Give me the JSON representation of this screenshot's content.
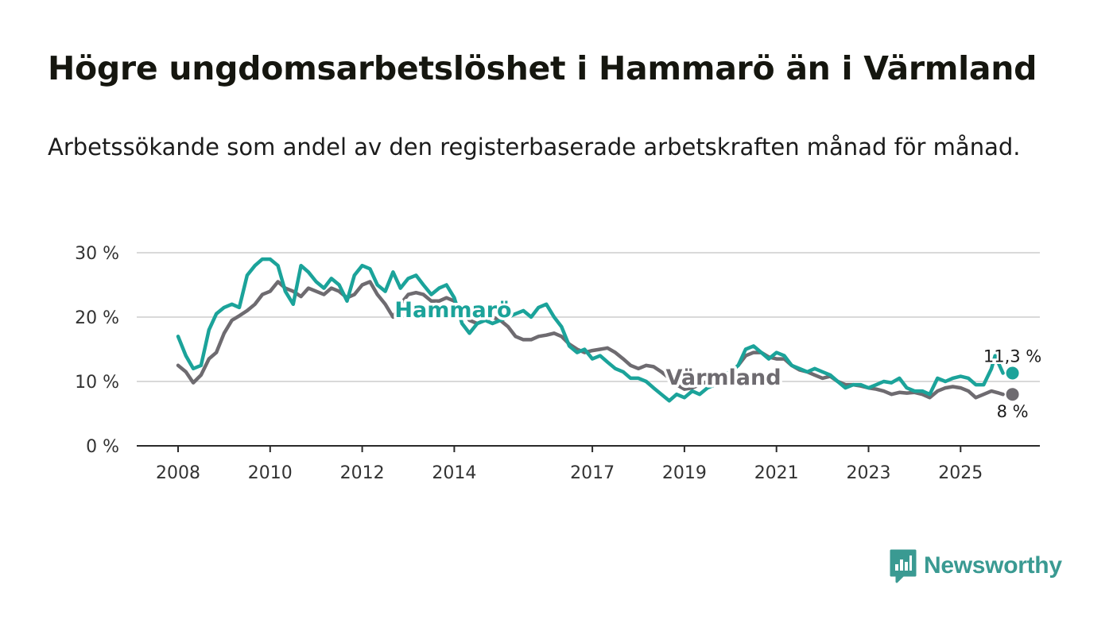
{
  "title": "Högre ungdomsarbetslöshet i Hammarö än i Värmland",
  "subtitle": "Arbetssökande som andel av den registerbaserade arbetskraften månad för månad.",
  "brand": {
    "name": "Newsworthy",
    "color": "#3a9a92",
    "icon": "bar-chart-chat-bubble-icon"
  },
  "chart_data": {
    "type": "line",
    "x_range": [
      2007.6,
      2026.5
    ],
    "ylim": [
      0,
      30
    ],
    "y_ticks": [
      {
        "value": 0,
        "label": "0 %"
      },
      {
        "value": 10,
        "label": "10 %"
      },
      {
        "value": 20,
        "label": "20 %"
      },
      {
        "value": 30,
        "label": "30 %"
      }
    ],
    "x_ticks": [
      {
        "value": 2008,
        "label": "2008"
      },
      {
        "value": 2010,
        "label": "2010"
      },
      {
        "value": 2012,
        "label": "2012"
      },
      {
        "value": 2014,
        "label": "2014"
      },
      {
        "value": 2017,
        "label": "2017"
      },
      {
        "value": 2019,
        "label": "2019"
      },
      {
        "value": 2021,
        "label": "2021"
      },
      {
        "value": 2023,
        "label": "2023"
      },
      {
        "value": 2025,
        "label": "2025"
      }
    ],
    "grid": true,
    "series": [
      {
        "name": "Värmland",
        "color": "#6e6b70",
        "end_label": "8 %",
        "points": [
          [
            2008.0,
            12.5
          ],
          [
            2008.17,
            11.5
          ],
          [
            2008.33,
            9.8
          ],
          [
            2008.5,
            11.0
          ],
          [
            2008.67,
            13.5
          ],
          [
            2008.83,
            14.5
          ],
          [
            2009.0,
            17.5
          ],
          [
            2009.17,
            19.5
          ],
          [
            2009.33,
            20.2
          ],
          [
            2009.5,
            21.0
          ],
          [
            2009.67,
            22.0
          ],
          [
            2009.83,
            23.5
          ],
          [
            2010.0,
            24.0
          ],
          [
            2010.17,
            25.5
          ],
          [
            2010.33,
            24.5
          ],
          [
            2010.5,
            24.0
          ],
          [
            2010.67,
            23.2
          ],
          [
            2010.83,
            24.5
          ],
          [
            2011.0,
            24.0
          ],
          [
            2011.17,
            23.5
          ],
          [
            2011.33,
            24.5
          ],
          [
            2011.5,
            24.0
          ],
          [
            2011.67,
            23.0
          ],
          [
            2011.83,
            23.5
          ],
          [
            2012.0,
            25.0
          ],
          [
            2012.17,
            25.5
          ],
          [
            2012.33,
            23.5
          ],
          [
            2012.5,
            22.0
          ],
          [
            2012.67,
            20.0
          ],
          [
            2012.83,
            22.0
          ],
          [
            2013.0,
            23.5
          ],
          [
            2013.17,
            23.8
          ],
          [
            2013.33,
            23.5
          ],
          [
            2013.5,
            22.5
          ],
          [
            2013.67,
            22.5
          ],
          [
            2013.83,
            23.0
          ],
          [
            2014.0,
            22.5
          ],
          [
            2014.17,
            21.0
          ],
          [
            2014.33,
            19.5
          ],
          [
            2014.5,
            19.0
          ],
          [
            2014.67,
            19.5
          ],
          [
            2014.83,
            20.0
          ],
          [
            2015.0,
            19.5
          ],
          [
            2015.17,
            18.5
          ],
          [
            2015.33,
            17.0
          ],
          [
            2015.5,
            16.5
          ],
          [
            2015.67,
            16.5
          ],
          [
            2015.83,
            17.0
          ],
          [
            2016.0,
            17.2
          ],
          [
            2016.17,
            17.5
          ],
          [
            2016.33,
            17.0
          ],
          [
            2016.5,
            15.8
          ],
          [
            2016.67,
            15.0
          ],
          [
            2016.83,
            14.5
          ],
          [
            2017.0,
            14.8
          ],
          [
            2017.17,
            15.0
          ],
          [
            2017.33,
            15.2
          ],
          [
            2017.5,
            14.5
          ],
          [
            2017.67,
            13.5
          ],
          [
            2017.83,
            12.5
          ],
          [
            2018.0,
            12.0
          ],
          [
            2018.17,
            12.5
          ],
          [
            2018.33,
            12.3
          ],
          [
            2018.5,
            11.5
          ],
          [
            2018.67,
            10.5
          ],
          [
            2018.83,
            9.5
          ],
          [
            2019.0,
            8.8
          ],
          [
            2019.17,
            9.0
          ],
          [
            2019.33,
            9.5
          ],
          [
            2019.5,
            10.0
          ],
          [
            2019.67,
            10.5
          ],
          [
            2019.83,
            11.0
          ],
          [
            2020.0,
            11.5
          ],
          [
            2020.17,
            12.5
          ],
          [
            2020.33,
            14.0
          ],
          [
            2020.5,
            14.5
          ],
          [
            2020.67,
            14.5
          ],
          [
            2020.83,
            13.8
          ],
          [
            2021.0,
            13.5
          ],
          [
            2021.17,
            13.5
          ],
          [
            2021.33,
            12.5
          ],
          [
            2021.5,
            11.8
          ],
          [
            2021.67,
            11.5
          ],
          [
            2021.83,
            11.0
          ],
          [
            2022.0,
            10.5
          ],
          [
            2022.17,
            10.8
          ],
          [
            2022.33,
            10.0
          ],
          [
            2022.5,
            9.5
          ],
          [
            2022.67,
            9.5
          ],
          [
            2022.83,
            9.3
          ],
          [
            2023.0,
            9.0
          ],
          [
            2023.17,
            8.8
          ],
          [
            2023.33,
            8.5
          ],
          [
            2023.5,
            8.0
          ],
          [
            2023.67,
            8.3
          ],
          [
            2023.83,
            8.2
          ],
          [
            2024.0,
            8.3
          ],
          [
            2024.17,
            8.0
          ],
          [
            2024.33,
            7.5
          ],
          [
            2024.5,
            8.5
          ],
          [
            2024.67,
            9.0
          ],
          [
            2024.83,
            9.2
          ],
          [
            2025.0,
            9.0
          ],
          [
            2025.17,
            8.5
          ],
          [
            2025.33,
            7.5
          ],
          [
            2025.5,
            8.0
          ],
          [
            2025.67,
            8.5
          ],
          [
            2025.83,
            8.2
          ],
          [
            2025.92,
            8.0
          ]
        ]
      },
      {
        "name": "Hammarö",
        "color": "#1ba39a",
        "end_label": "11,3 %",
        "points": [
          [
            2008.0,
            17.0
          ],
          [
            2008.17,
            14.0
          ],
          [
            2008.33,
            12.0
          ],
          [
            2008.5,
            12.5
          ],
          [
            2008.67,
            18.0
          ],
          [
            2008.83,
            20.5
          ],
          [
            2009.0,
            21.5
          ],
          [
            2009.17,
            22.0
          ],
          [
            2009.33,
            21.5
          ],
          [
            2009.5,
            26.5
          ],
          [
            2009.67,
            28.0
          ],
          [
            2009.83,
            29.0
          ],
          [
            2010.0,
            29.0
          ],
          [
            2010.17,
            28.0
          ],
          [
            2010.33,
            24.0
          ],
          [
            2010.5,
            22.0
          ],
          [
            2010.67,
            28.0
          ],
          [
            2010.83,
            27.0
          ],
          [
            2011.0,
            25.5
          ],
          [
            2011.17,
            24.5
          ],
          [
            2011.33,
            26.0
          ],
          [
            2011.5,
            25.0
          ],
          [
            2011.67,
            22.5
          ],
          [
            2011.83,
            26.5
          ],
          [
            2012.0,
            28.0
          ],
          [
            2012.17,
            27.5
          ],
          [
            2012.33,
            25.0
          ],
          [
            2012.5,
            24.0
          ],
          [
            2012.67,
            27.0
          ],
          [
            2012.83,
            24.5
          ],
          [
            2013.0,
            26.0
          ],
          [
            2013.17,
            26.5
          ],
          [
            2013.33,
            25.0
          ],
          [
            2013.5,
            23.5
          ],
          [
            2013.67,
            24.5
          ],
          [
            2013.83,
            25.0
          ],
          [
            2014.0,
            23.0
          ],
          [
            2014.17,
            19.0
          ],
          [
            2014.33,
            17.5
          ],
          [
            2014.5,
            19.0
          ],
          [
            2014.67,
            19.5
          ],
          [
            2014.83,
            19.0
          ],
          [
            2015.0,
            19.5
          ],
          [
            2015.17,
            20.0
          ],
          [
            2015.33,
            20.5
          ],
          [
            2015.5,
            21.0
          ],
          [
            2015.67,
            20.0
          ],
          [
            2015.83,
            21.5
          ],
          [
            2016.0,
            22.0
          ],
          [
            2016.17,
            20.0
          ],
          [
            2016.33,
            18.5
          ],
          [
            2016.5,
            15.5
          ],
          [
            2016.67,
            14.5
          ],
          [
            2016.83,
            15.0
          ],
          [
            2017.0,
            13.5
          ],
          [
            2017.17,
            14.0
          ],
          [
            2017.33,
            13.0
          ],
          [
            2017.5,
            12.0
          ],
          [
            2017.67,
            11.5
          ],
          [
            2017.83,
            10.5
          ],
          [
            2018.0,
            10.5
          ],
          [
            2018.17,
            10.0
          ],
          [
            2018.33,
            9.0
          ],
          [
            2018.5,
            8.0
          ],
          [
            2018.67,
            7.0
          ],
          [
            2018.83,
            8.0
          ],
          [
            2019.0,
            7.5
          ],
          [
            2019.17,
            8.5
          ],
          [
            2019.33,
            8.0
          ],
          [
            2019.5,
            9.0
          ],
          [
            2019.67,
            9.5
          ],
          [
            2019.83,
            11.0
          ],
          [
            2020.0,
            11.5
          ],
          [
            2020.17,
            12.5
          ],
          [
            2020.33,
            15.0
          ],
          [
            2020.5,
            15.5
          ],
          [
            2020.67,
            14.5
          ],
          [
            2020.83,
            13.5
          ],
          [
            2021.0,
            14.5
          ],
          [
            2021.17,
            14.0
          ],
          [
            2021.33,
            12.5
          ],
          [
            2021.5,
            12.0
          ],
          [
            2021.67,
            11.5
          ],
          [
            2021.83,
            12.0
          ],
          [
            2022.0,
            11.5
          ],
          [
            2022.17,
            11.0
          ],
          [
            2022.33,
            10.0
          ],
          [
            2022.5,
            9.0
          ],
          [
            2022.67,
            9.5
          ],
          [
            2022.83,
            9.5
          ],
          [
            2023.0,
            9.0
          ],
          [
            2023.17,
            9.5
          ],
          [
            2023.33,
            10.0
          ],
          [
            2023.5,
            9.8
          ],
          [
            2023.67,
            10.5
          ],
          [
            2023.83,
            9.0
          ],
          [
            2024.0,
            8.5
          ],
          [
            2024.17,
            8.5
          ],
          [
            2024.33,
            8.0
          ],
          [
            2024.5,
            10.5
          ],
          [
            2024.67,
            10.0
          ],
          [
            2024.83,
            10.5
          ],
          [
            2025.0,
            10.8
          ],
          [
            2025.17,
            10.5
          ],
          [
            2025.33,
            9.5
          ],
          [
            2025.5,
            9.5
          ],
          [
            2025.67,
            12.0
          ],
          [
            2025.75,
            14.0
          ],
          [
            2025.92,
            11.3
          ]
        ]
      }
    ]
  }
}
